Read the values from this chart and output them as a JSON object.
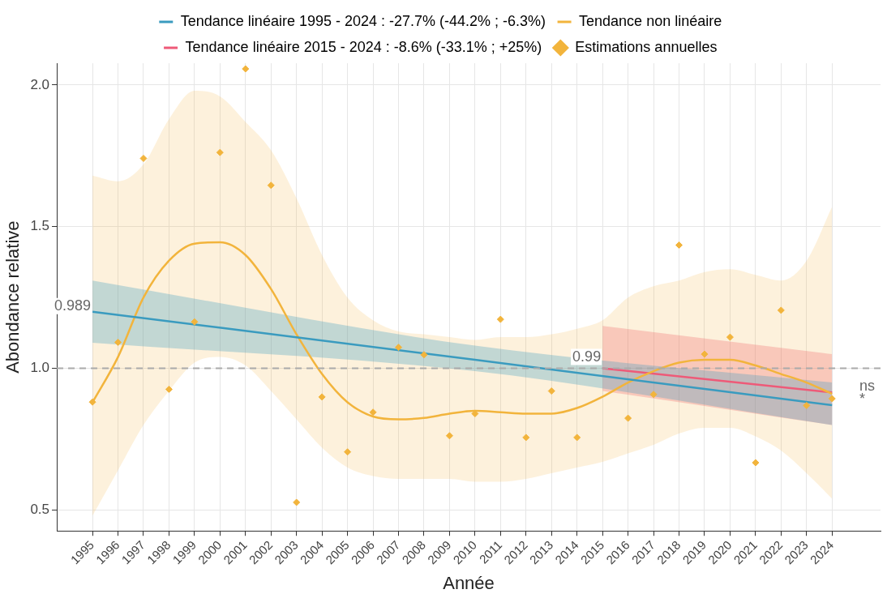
{
  "chart_data": {
    "type": "line",
    "xlabel": "Année",
    "ylabel": "Abondance relative",
    "xlim": [
      1993.6,
      2025.9
    ],
    "ylim": [
      0.426,
      2.077
    ],
    "xticks": [
      1995,
      1996,
      1997,
      1998,
      1999,
      2000,
      2001,
      2002,
      2003,
      2004,
      2005,
      2006,
      2007,
      2008,
      2009,
      2010,
      2011,
      2012,
      2013,
      2014,
      2015,
      2016,
      2017,
      2018,
      2019,
      2020,
      2021,
      2022,
      2023,
      2024
    ],
    "yticks": [
      {
        "value": 0.5,
        "label": "0.5"
      },
      {
        "value": 1,
        "label": "1.0"
      },
      {
        "value": 1.5,
        "label": "1.5"
      },
      {
        "value": 2,
        "label": "2.0"
      }
    ],
    "grid": true,
    "legend": "top",
    "ref_lines": [
      {
        "axis": "y",
        "value": 1,
        "color": "#aaaaaa",
        "line_style": "dashed"
      }
    ],
    "annotations": [
      {
        "text": "0.989",
        "x": 1995,
        "y": 1.22
      },
      {
        "text": "0.99",
        "x": 2015,
        "y": 1.04
      },
      "ns",
      "*"
    ],
    "series": [
      {
        "type": "line",
        "name": "Tendance linéaire 1995 - 2024 : -27.7% (-44.2% ; -6.3%)",
        "color": "#3a9bbf",
        "x": [
          1995,
          2010,
          2024
        ],
        "values": [
          1.2,
          1.03,
          0.87
        ],
        "lower": [
          1.09,
          0.99,
          0.8
        ],
        "upper": [
          1.31,
          1.08,
          0.95
        ]
      },
      {
        "type": "line",
        "name": "Tendance non linéaire",
        "color": "#f2b43c",
        "x": [
          1995,
          1996,
          1997,
          1998,
          1999,
          2000,
          2001,
          2002,
          2003,
          2004,
          2005,
          2006,
          2007,
          2008,
          2009,
          2010,
          2011,
          2012,
          2013,
          2014,
          2015,
          2016,
          2017,
          2018,
          2019,
          2020,
          2021,
          2022,
          2023,
          2024
        ],
        "values": [
          0.88,
          1.04,
          1.25,
          1.38,
          1.44,
          1.445,
          1.4,
          1.28,
          1.12,
          0.98,
          0.88,
          0.83,
          0.82,
          0.825,
          0.84,
          0.85,
          0.845,
          0.84,
          0.84,
          0.86,
          0.9,
          0.95,
          0.99,
          1.02,
          1.03,
          1.03,
          1.01,
          0.98,
          0.95,
          0.91
        ],
        "lower": [
          0.48,
          0.64,
          0.8,
          0.92,
          1.02,
          1.04,
          1.01,
          0.92,
          0.82,
          0.72,
          0.65,
          0.62,
          0.61,
          0.61,
          0.61,
          0.6,
          0.6,
          0.61,
          0.63,
          0.65,
          0.67,
          0.7,
          0.73,
          0.77,
          0.79,
          0.79,
          0.76,
          0.71,
          0.63,
          0.54
        ],
        "upper": [
          1.68,
          1.66,
          1.72,
          1.88,
          1.98,
          1.96,
          1.87,
          1.77,
          1.6,
          1.4,
          1.25,
          1.17,
          1.13,
          1.12,
          1.11,
          1.1,
          1.11,
          1.11,
          1.12,
          1.14,
          1.17,
          1.25,
          1.29,
          1.31,
          1.34,
          1.35,
          1.33,
          1.31,
          1.38,
          1.57
        ]
      },
      {
        "type": "line",
        "name": "Tendance linéaire 2015 - 2024 : -8.6% (-33.1% ; +25%)",
        "color": "#ee5a78",
        "x": [
          2015,
          2024
        ],
        "values": [
          1.0,
          0.915
        ],
        "lower": [
          0.92,
          0.8
        ],
        "upper": [
          1.15,
          1.05
        ]
      },
      {
        "type": "scatter",
        "name": "Estimations annuelles",
        "color": "#f2b43c",
        "marker": "diamond",
        "x": [
          1995,
          1996,
          1997,
          1998,
          1999,
          2000,
          2001,
          2002,
          2003,
          2004,
          2005,
          2006,
          2007,
          2008,
          2009,
          2010,
          2011,
          2012,
          2013,
          2014,
          2015,
          2016,
          2017,
          2018,
          2019,
          2020,
          2021,
          2022,
          2023,
          2024
        ],
        "values": [
          0.881,
          1.092,
          1.741,
          0.926,
          1.164,
          1.762,
          2.057,
          1.646,
          0.527,
          0.899,
          0.705,
          0.845,
          1.074,
          1.048,
          0.762,
          0.84,
          1.173,
          0.756,
          0.92,
          0.756,
          null,
          0.824,
          0.908,
          1.435,
          1.05,
          1.11,
          0.667,
          1.205,
          0.869,
          0.893
        ]
      }
    ]
  }
}
